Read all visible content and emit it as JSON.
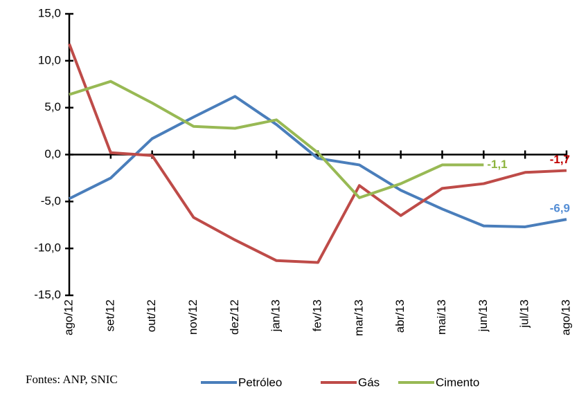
{
  "chart_data": {
    "type": "line",
    "categories": [
      "ago/12",
      "set/12",
      "out/12",
      "nov/12",
      "dez/12",
      "jan/13",
      "fev/13",
      "mar/13",
      "abr/13",
      "mai/13",
      "jun/13",
      "jul/13",
      "ago/13"
    ],
    "series": [
      {
        "name": "Petróleo",
        "color": "#4a7ebb",
        "label_color": "#558ed5",
        "values": [
          -4.7,
          -2.5,
          1.7,
          4.0,
          6.2,
          3.2,
          -0.4,
          -1.1,
          -3.8,
          -5.8,
          -7.6,
          -7.7,
          -6.9
        ],
        "value_labels": [
          null,
          null,
          null,
          null,
          null,
          null,
          null,
          null,
          null,
          null,
          null,
          null,
          "-6,9"
        ]
      },
      {
        "name": "Gás",
        "color": "#be4b48",
        "label_color": "#c00000",
        "values": [
          11.8,
          0.2,
          -0.1,
          -6.7,
          -9.1,
          -11.3,
          -11.5,
          -3.3,
          -6.5,
          -3.6,
          -3.1,
          -1.9,
          -1.7
        ],
        "value_labels": [
          null,
          null,
          null,
          null,
          null,
          null,
          null,
          null,
          null,
          null,
          null,
          null,
          "-1,7"
        ]
      },
      {
        "name": "Cimento",
        "color": "#98b954",
        "label_color": "#8db43e",
        "values": [
          6.4,
          7.8,
          5.5,
          3.0,
          2.8,
          3.7,
          0.2,
          -4.6,
          -3.1,
          -1.1,
          -1.1,
          null,
          null
        ],
        "value_labels": [
          null,
          null,
          null,
          null,
          null,
          null,
          null,
          null,
          null,
          null,
          "-1,1",
          null,
          null
        ]
      }
    ],
    "ylim": [
      -15,
      15
    ],
    "yticks": [
      {
        "value": -15,
        "label": "-15,0"
      },
      {
        "value": -10,
        "label": "-10,0"
      },
      {
        "value": -5,
        "label": "-5,0"
      },
      {
        "value": 0,
        "label": "0,0"
      },
      {
        "value": 5,
        "label": "5,0"
      },
      {
        "value": 10,
        "label": "10,0"
      },
      {
        "value": 15,
        "label": "15,0"
      }
    ],
    "note": "Fontes: ANP, SNIC"
  }
}
